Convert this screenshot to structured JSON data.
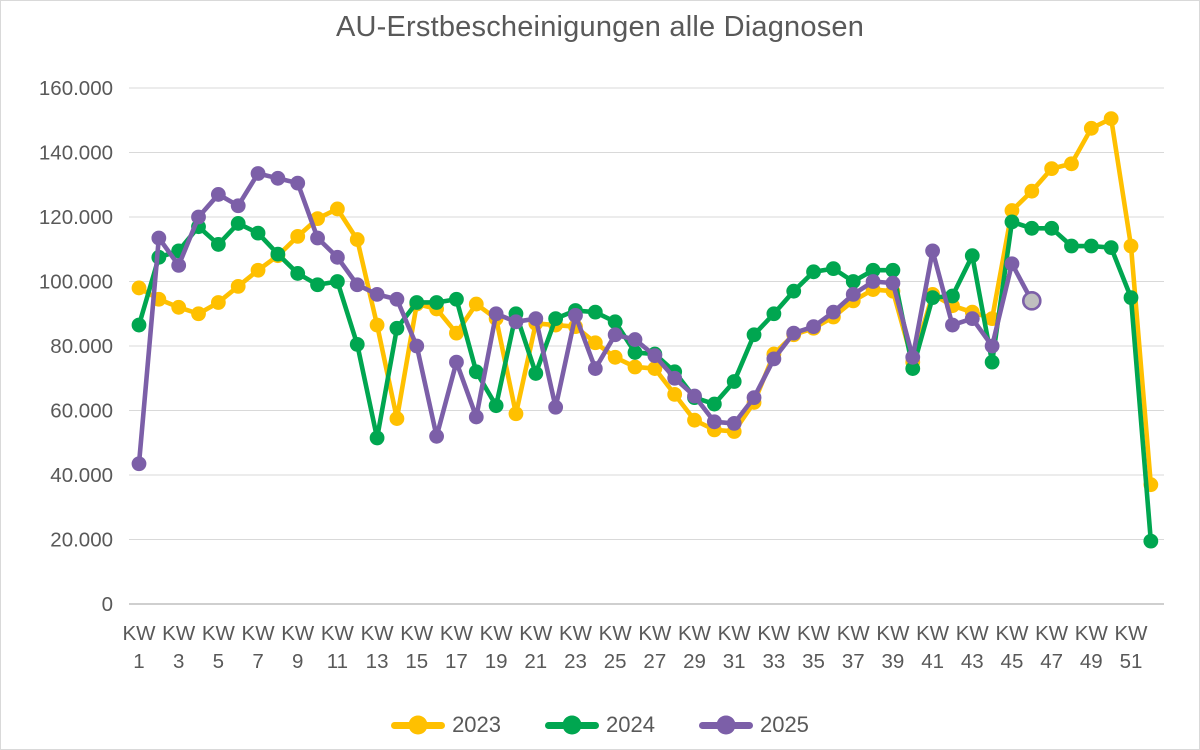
{
  "page": {
    "background": "#FFFFFF",
    "border_color": "#D9D9D9"
  },
  "chart_data": {
    "type": "line",
    "title": "AU-Erstbescheinigungen alle Diagnosen",
    "xlabel": "",
    "ylabel": "",
    "ylim": [
      0,
      160000
    ],
    "grid": true,
    "legend_position": "bottom",
    "text_color": "#595959",
    "grid_color": "#D9D9D9",
    "axis_color": "#BFBFBF",
    "x_tick_prefix": "KW",
    "x_tick_weeks": [
      1,
      3,
      5,
      7,
      9,
      11,
      13,
      15,
      17,
      19,
      21,
      23,
      25,
      27,
      29,
      31,
      33,
      35,
      37,
      39,
      41,
      43,
      45,
      47,
      49,
      51
    ],
    "x_total_weeks": 52,
    "y_ticks": [
      {
        "value": 0,
        "label": "0"
      },
      {
        "value": 20000,
        "label": "20.000"
      },
      {
        "value": 40000,
        "label": "40.000"
      },
      {
        "value": 60000,
        "label": "60.000"
      },
      {
        "value": 80000,
        "label": "80.000"
      },
      {
        "value": 100000,
        "label": "100.000"
      },
      {
        "value": 120000,
        "label": "120.000"
      },
      {
        "value": 140000,
        "label": "140.000"
      },
      {
        "value": 160000,
        "label": "160.000"
      }
    ],
    "series": [
      {
        "name": "2023",
        "color": "#FFC000",
        "values": [
          98000,
          94500,
          92000,
          90000,
          93500,
          98500,
          103500,
          108000,
          114000,
          119500,
          122500,
          113000,
          86500,
          57500,
          93000,
          91500,
          84000,
          93000,
          88500,
          59000,
          87000,
          86500,
          86000,
          81000,
          76500,
          73500,
          73000,
          65000,
          57000,
          54000,
          53500,
          62500,
          77500,
          83500,
          85500,
          89000,
          94000,
          97500,
          97000,
          75000,
          96000,
          92500,
          90500,
          88500,
          122000,
          128000,
          135000,
          136500,
          147500,
          150500,
          111000,
          37000
        ]
      },
      {
        "name": "2024",
        "color": "#00A650",
        "values": [
          86500,
          107500,
          109500,
          117000,
          111500,
          118000,
          115000,
          108500,
          102500,
          99000,
          100000,
          80500,
          51500,
          85500,
          93500,
          93500,
          94500,
          72000,
          61500,
          90000,
          71500,
          88500,
          91000,
          90500,
          87500,
          78000,
          77500,
          72000,
          64000,
          62000,
          69000,
          83500,
          90000,
          97000,
          103000,
          104000,
          100000,
          103500,
          103500,
          73000,
          95000,
          95500,
          108000,
          75000,
          118500,
          116500,
          116500,
          111000,
          111000,
          110500,
          95000,
          19500
        ]
      },
      {
        "name": "2025",
        "color": "#7C5FA8",
        "last_marker_fill": "#BFBFBF",
        "values": [
          43500,
          113500,
          105000,
          120000,
          127000,
          123500,
          133500,
          132000,
          130500,
          113500,
          107500,
          99000,
          96000,
          94500,
          80000,
          52000,
          75000,
          58000,
          90000,
          87500,
          88500,
          61000,
          89500,
          73000,
          83500,
          82000,
          77000,
          70000,
          64500,
          56500,
          56000,
          64000,
          76000,
          84000,
          86000,
          90500,
          96000,
          100000,
          99500,
          76500,
          109500,
          86500,
          88500,
          80000,
          105500,
          94000
        ]
      }
    ]
  }
}
